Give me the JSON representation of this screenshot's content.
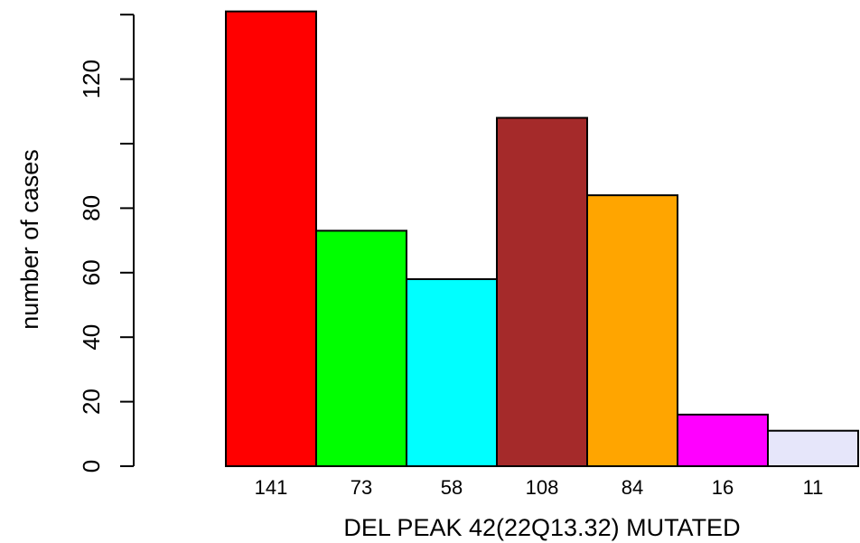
{
  "chart_data": {
    "type": "bar",
    "title": "",
    "xlabel": "DEL PEAK 42(22Q13.32) MUTATED",
    "ylabel": "number of cases",
    "categories": [
      "141",
      "73",
      "58",
      "108",
      "84",
      "16",
      "11"
    ],
    "values": [
      141,
      73,
      58,
      108,
      84,
      16,
      11
    ],
    "colors": [
      "#ff0000",
      "#00ff00",
      "#00ffff",
      "#a52a2a",
      "#ffa500",
      "#ff00ff",
      "#e6e6fa"
    ],
    "yticks": [
      0,
      20,
      40,
      60,
      80,
      120
    ],
    "yaxis_max": 140,
    "ylim": [
      0,
      141
    ],
    "grid": false,
    "legend": "none"
  }
}
